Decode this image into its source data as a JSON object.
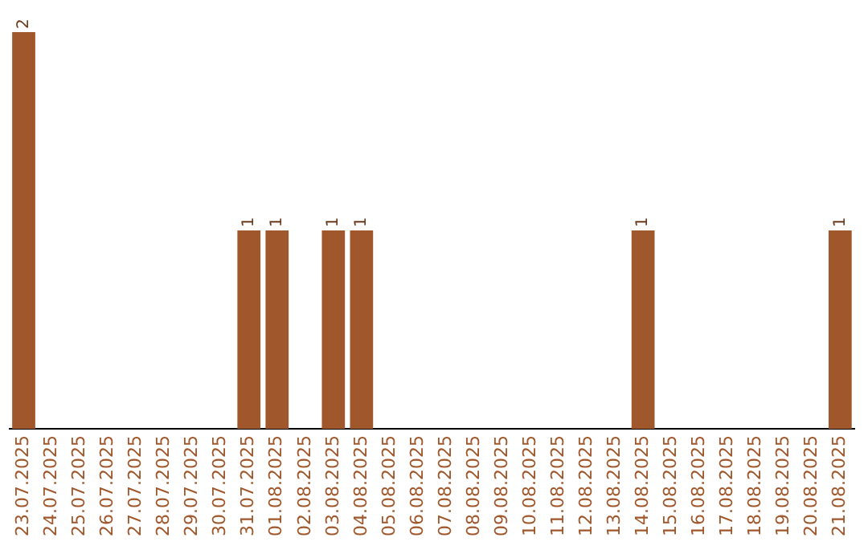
{
  "chart_data": {
    "type": "bar",
    "categories": [
      "23.07.2025",
      "24.07.2025",
      "25.07.2025",
      "26.07.2025",
      "27.07.2025",
      "28.07.2025",
      "29.07.2025",
      "30.07.2025",
      "31.07.2025",
      "01.08.2025",
      "02.08.2025",
      "03.08.2025",
      "04.08.2025",
      "05.08.2025",
      "06.08.2025",
      "07.08.2025",
      "08.08.2025",
      "09.08.2025",
      "10.08.2025",
      "11.08.2025",
      "12.08.2025",
      "13.08.2025",
      "14.08.2025",
      "15.08.2025",
      "16.08.2025",
      "17.08.2025",
      "18.08.2025",
      "19.08.2025",
      "20.08.2025",
      "21.08.2025"
    ],
    "values": [
      2,
      0,
      0,
      0,
      0,
      0,
      0,
      0,
      1,
      1,
      0,
      1,
      1,
      0,
      0,
      0,
      0,
      0,
      0,
      0,
      0,
      0,
      1,
      0,
      0,
      0,
      0,
      0,
      0,
      1
    ],
    "value_labels": [
      "2",
      null,
      null,
      null,
      null,
      null,
      null,
      null,
      "1",
      "1",
      null,
      "1",
      "1",
      null,
      null,
      null,
      null,
      null,
      null,
      null,
      null,
      null,
      "1",
      null,
      null,
      null,
      null,
      null,
      null,
      "1"
    ],
    "color": "#a0572b",
    "grid": false,
    "legend": false,
    "tick_labels": "x"
  }
}
